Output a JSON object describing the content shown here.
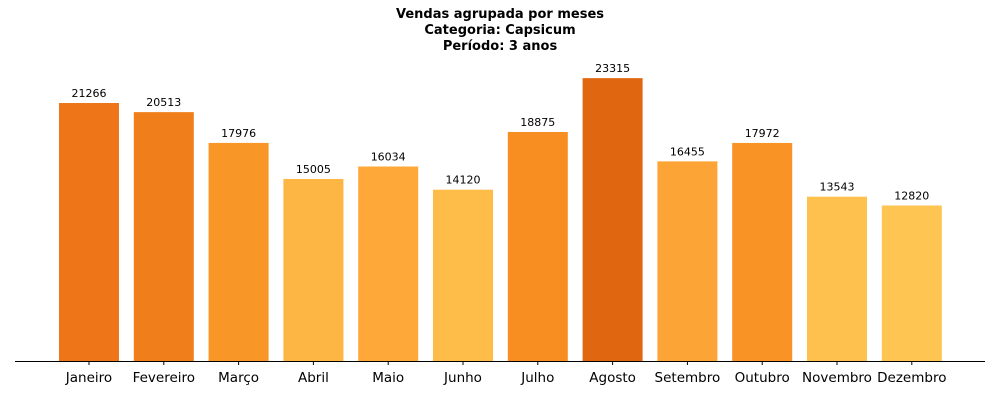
{
  "chart_data": {
    "type": "bar",
    "title_lines": [
      "Vendas agrupada por meses",
      "Categoria: Capsicum",
      "Período: 3 anos"
    ],
    "xlabel": "",
    "ylabel": "",
    "categories": [
      "Janeiro",
      "Fevereiro",
      "Março",
      "Abril",
      "Maio",
      "Junho",
      "Julho",
      "Agosto",
      "Setembro",
      "Outubro",
      "Novembro",
      "Dezembro"
    ],
    "values": [
      21266,
      20513,
      17976,
      15005,
      16034,
      14120,
      18875,
      23315,
      16455,
      17972,
      13543,
      12820
    ],
    "colors": [
      "#EE7618",
      "#F07E1B",
      "#F99628",
      "#FDB543",
      "#FDA838",
      "#FEBC48",
      "#F88E22",
      "#E0660F",
      "#FCA536",
      "#F99325",
      "#FEC14D",
      "#FEC552"
    ],
    "ylim": [
      0,
      24481
    ],
    "grid": false,
    "legend": "none",
    "show_y_axis": false
  }
}
